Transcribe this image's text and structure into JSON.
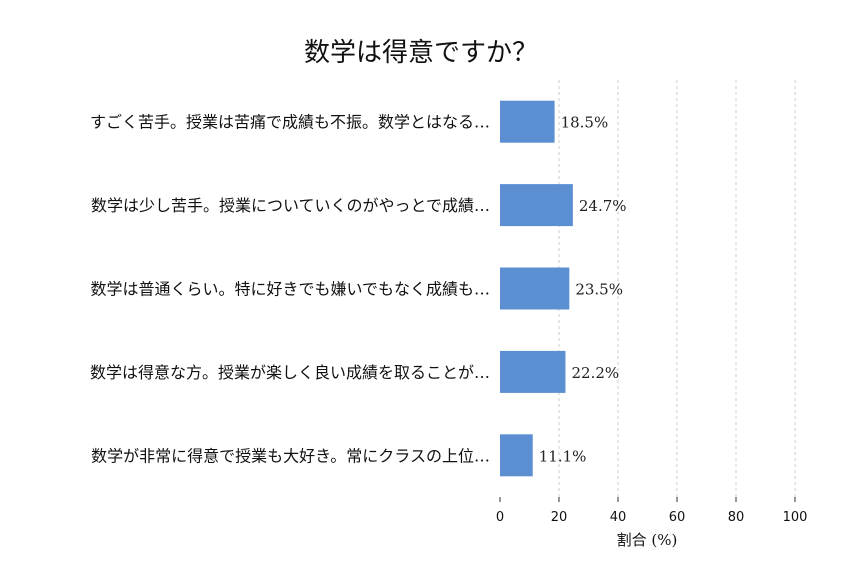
{
  "chart_data": {
    "type": "bar",
    "orientation": "horizontal",
    "title": "数学は得意ですか？",
    "xlabel": "割合 (%)",
    "ylabel": "",
    "xlim": [
      0,
      100
    ],
    "xticks": [
      0,
      20,
      40,
      60,
      80,
      100
    ],
    "grid": "vertical-dashed",
    "bar_color": "#5b8fd1",
    "categories": [
      "すごく苦手。授業は苦痛で成績も不振。数学とはなる…",
      "数学は少し苦手。授業についていくのがやっとで成績…",
      "数学は普通くらい。特に好きでも嫌いでもなく成績も…",
      "数学は得意な方。授業が楽しく良い成績を取ることが…",
      "数学が非常に得意で授業も大好き。常にクラスの上位…"
    ],
    "values": [
      18.5,
      24.7,
      23.5,
      22.2,
      11.1
    ],
    "value_labels": [
      "18.5%",
      "24.7%",
      "23.5%",
      "22.2%",
      "11.1%"
    ]
  }
}
